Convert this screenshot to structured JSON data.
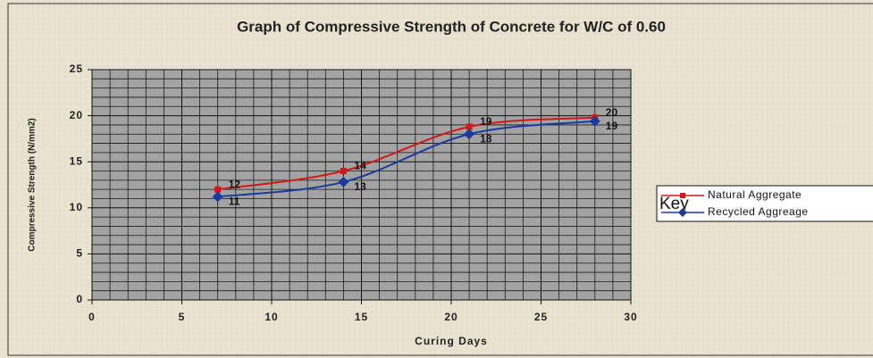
{
  "chart_data": {
    "type": "line",
    "title": "Graph of Compressive Strength of Concrete for W/C of 0.60",
    "x_label": "Curing Days",
    "y_label": "Compressive Strength (N/mm2)",
    "legend_title": "Key",
    "legend": "right",
    "grid": true,
    "minor_grid": true,
    "smooth": true,
    "xlim": [
      0,
      30
    ],
    "xticks": [
      0,
      5,
      10,
      15,
      20,
      25,
      30
    ],
    "ylim": [
      0,
      25
    ],
    "yticks": [
      0,
      5,
      10,
      15,
      20,
      25
    ],
    "x": [
      7,
      14,
      21,
      28
    ],
    "series": [
      {
        "name": "Natural Aggregate",
        "color": "#d01818",
        "marker": "square",
        "values": [
          12,
          14,
          18.8,
          19.8
        ],
        "value_labels": [
          "12",
          "14",
          "19",
          "20"
        ]
      },
      {
        "name": "Recycled Aggreage",
        "color": "#1a3aa0",
        "marker": "diamond",
        "values": [
          11.2,
          12.8,
          18,
          19.4
        ],
        "value_labels": [
          "11",
          "13",
          "18",
          "19"
        ]
      }
    ]
  }
}
